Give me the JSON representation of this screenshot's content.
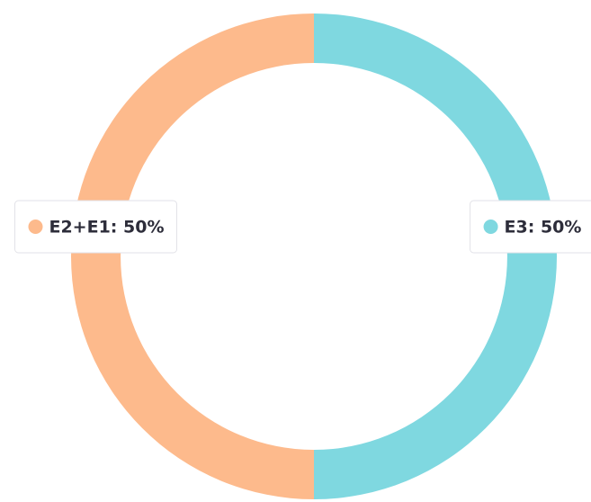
{
  "chart_data": {
    "type": "donut",
    "categories": [
      "E3",
      "E2+E1"
    ],
    "values": [
      50,
      50
    ],
    "value_labels": [
      "E3: 50%",
      "E2+E1: 50%"
    ],
    "colors": [
      "#7fd8e0",
      "#fdba8c"
    ]
  }
}
